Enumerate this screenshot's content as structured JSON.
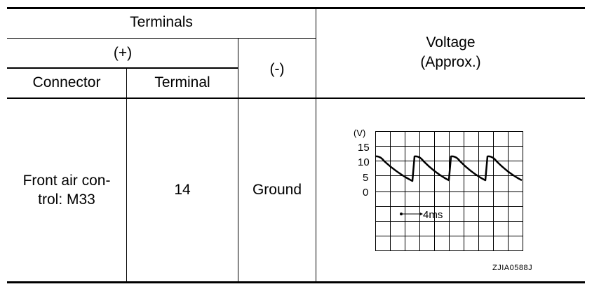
{
  "table": {
    "header": {
      "terminals": "Terminals",
      "plus": "(+)",
      "minus": "(-)",
      "connector": "Connector",
      "terminal": "Terminal",
      "voltage_line1": "Voltage",
      "voltage_line2": "(Approx.)"
    },
    "row": {
      "connector_line1": "Front air con-",
      "connector_line2": "trol: M33",
      "terminal": "14",
      "minus": "Ground"
    }
  },
  "waveform": {
    "unit_label": "(V)",
    "y_ticks": [
      "15",
      "10",
      "5",
      "0"
    ],
    "time_scale": "4ms",
    "figure_code": "ZJIA0588J"
  }
}
